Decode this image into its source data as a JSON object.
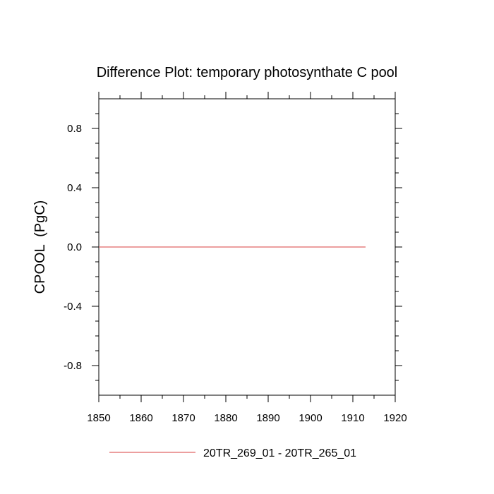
{
  "chart_data": {
    "type": "line",
    "title": "Difference Plot: temporary photosynthate C pool",
    "ylabel": "CPOOL  (PgC)",
    "xlabel": "",
    "xlim": [
      1850,
      1920
    ],
    "ylim": [
      -1,
      1
    ],
    "x_ticks": [
      "1850",
      "1860",
      "1870",
      "1880",
      "1890",
      "1900",
      "1910",
      "1920"
    ],
    "y_ticks": [
      "0.8",
      "0.4",
      "0.0",
      "-0.4",
      "-0.8"
    ],
    "y_tick_values": [
      0.8,
      0.4,
      0.0,
      -0.4,
      -0.8
    ],
    "grid": false,
    "legend_position": "bottom",
    "series": [
      {
        "name": "20TR_269_01 - 20TR_265_01",
        "color": "#e06666",
        "x": [
          1850,
          1913
        ],
        "values": [
          0.0,
          0.0
        ]
      }
    ]
  }
}
